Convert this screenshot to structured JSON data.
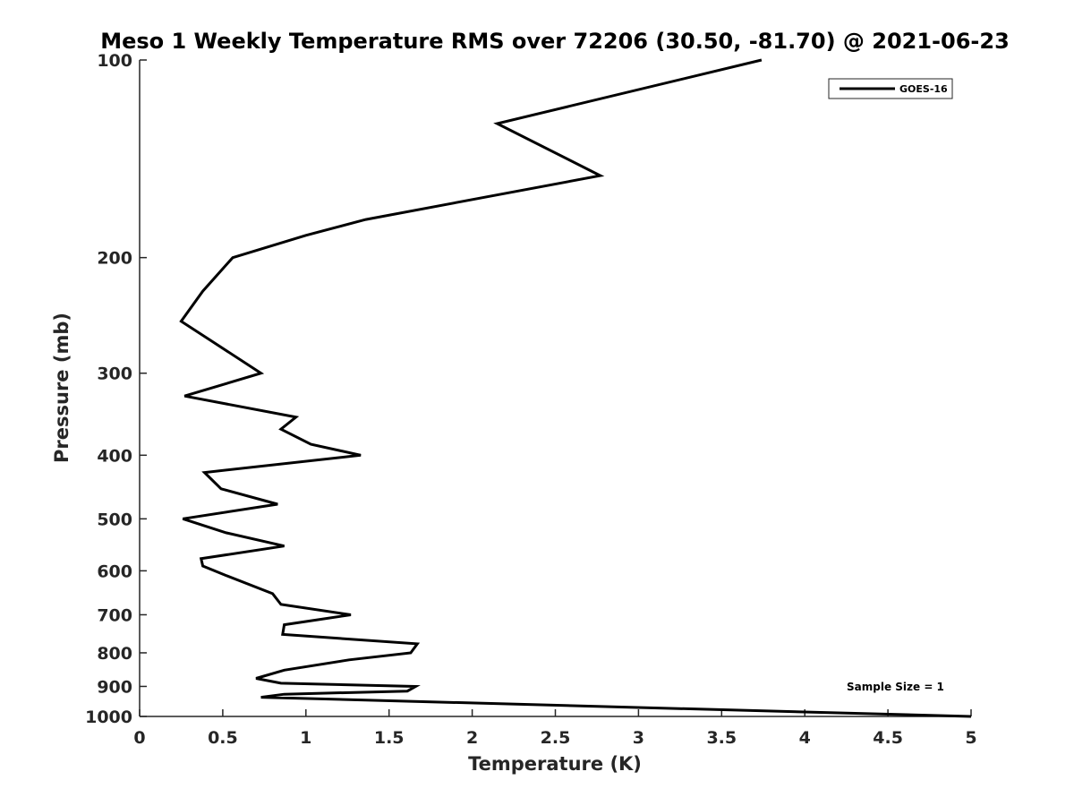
{
  "chart_data": {
    "type": "line",
    "title": "Meso 1 Weekly Temperature RMS over 72206 (30.50, -81.70) @ 2021-06-23",
    "xlabel": "Temperature (K)",
    "ylabel": "Pressure (mb)",
    "xlim": [
      0,
      5
    ],
    "ylim": [
      1000,
      100
    ],
    "yscale": "log",
    "y_reversed": true,
    "x_ticks": [
      0,
      0.5,
      1,
      1.5,
      2,
      2.5,
      3,
      3.5,
      4,
      4.5,
      5
    ],
    "x_tick_labels": [
      "0",
      "0.5",
      "1",
      "1.5",
      "2",
      "2.5",
      "3",
      "3.5",
      "4",
      "4.5",
      "5"
    ],
    "y_ticks": [
      100,
      200,
      300,
      400,
      500,
      600,
      700,
      800,
      900,
      1000
    ],
    "y_tick_labels": [
      "100",
      "200",
      "300",
      "400",
      "500",
      "600",
      "700",
      "800",
      "900",
      "1000"
    ],
    "grid": false,
    "legend_position": "top-right",
    "series": [
      {
        "name": "GOES-16",
        "color": "#000000",
        "x": [
          3.74,
          2.15,
          2.77,
          1.36,
          1.0,
          0.56,
          0.38,
          0.25,
          0.73,
          0.27,
          0.94,
          0.85,
          1.03,
          1.33,
          0.39,
          0.49,
          0.83,
          0.26,
          0.52,
          0.87,
          0.37,
          0.38,
          0.52,
          0.8,
          0.85,
          1.27,
          0.87,
          0.86,
          1.67,
          1.63,
          1.26,
          0.87,
          0.7,
          0.85,
          1.66,
          1.61,
          0.87,
          0.73,
          5.0
        ],
        "y": [
          100,
          125,
          150,
          175,
          185,
          200,
          225,
          250,
          300,
          325,
          350,
          365,
          385,
          400,
          425,
          450,
          475,
          500,
          525,
          550,
          575,
          590,
          610,
          650,
          675,
          700,
          725,
          750,
          775,
          800,
          820,
          850,
          875,
          890,
          900,
          915,
          925,
          935,
          1000
        ]
      }
    ],
    "annotation": "Sample Size = 1"
  }
}
